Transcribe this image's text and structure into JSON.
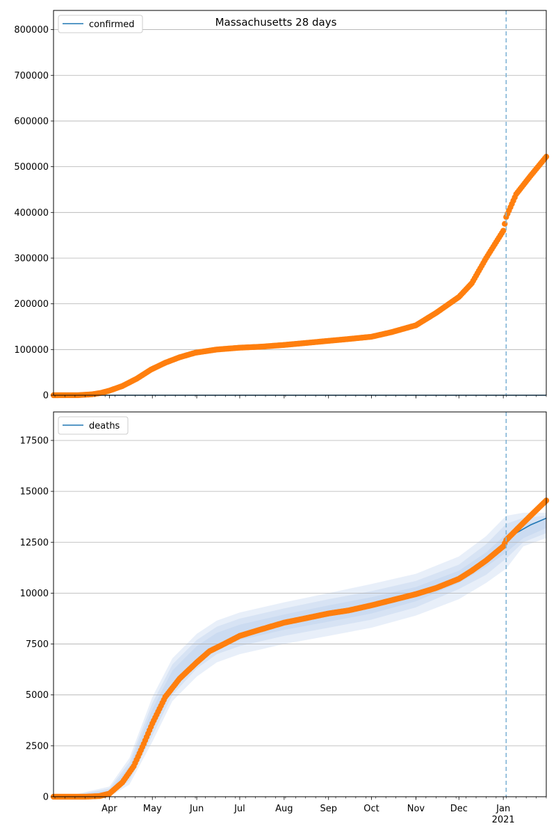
{
  "figure": {
    "title": "Massachusetts 28 days"
  },
  "colors": {
    "model": "#1f77b4",
    "observed": "#ff7f0e",
    "band": "#aec7e8",
    "grid": "#b0b0b0",
    "cutoff": "#7fb3d5"
  },
  "chart_data": [
    {
      "type": "scatter",
      "panel": "confirmed",
      "legend": [
        "confirmed"
      ],
      "legend_position": "top-left",
      "grid": "horizontal",
      "xlim": [
        "2020-02-22",
        "2021-01-31"
      ],
      "ylim": [
        0,
        842000
      ],
      "yticks": [
        0,
        100000,
        200000,
        300000,
        400000,
        500000,
        600000,
        700000,
        800000
      ],
      "xticks": [
        "2020-04-01",
        "2020-05-01",
        "2020-06-01",
        "2020-07-01",
        "2020-08-01",
        "2020-09-01",
        "2020-10-01",
        "2020-11-01",
        "2020-12-01",
        "2021-01-01"
      ],
      "xtick_labels": [
        "Apr",
        "May",
        "Jun",
        "Jul",
        "Aug",
        "Sep",
        "Oct",
        "Nov",
        "Dec",
        "Jan"
      ],
      "xtick_year_label": "2021",
      "forecast_start": "2021-01-03",
      "model_line": [
        [
          "2020-02-22",
          0
        ],
        [
          "2021-01-31",
          0
        ]
      ],
      "observed": [
        [
          "2020-02-22",
          0
        ],
        [
          "2020-03-10",
          100
        ],
        [
          "2020-03-20",
          2000
        ],
        [
          "2020-03-26",
          5000
        ],
        [
          "2020-04-01",
          10000
        ],
        [
          "2020-04-10",
          20000
        ],
        [
          "2020-04-20",
          36000
        ],
        [
          "2020-04-30",
          56000
        ],
        [
          "2020-05-10",
          71000
        ],
        [
          "2020-05-20",
          83000
        ],
        [
          "2020-05-31",
          93000
        ],
        [
          "2020-06-15",
          100000
        ],
        [
          "2020-07-01",
          104000
        ],
        [
          "2020-07-15",
          106000
        ],
        [
          "2020-08-01",
          110000
        ],
        [
          "2020-08-15",
          114000
        ],
        [
          "2020-09-01",
          119000
        ],
        [
          "2020-09-15",
          123000
        ],
        [
          "2020-10-01",
          128000
        ],
        [
          "2020-10-15",
          138000
        ],
        [
          "2020-11-01",
          153000
        ],
        [
          "2020-11-15",
          180000
        ],
        [
          "2020-12-01",
          215000
        ],
        [
          "2020-12-10",
          245000
        ],
        [
          "2020-12-20",
          300000
        ],
        [
          "2021-01-01",
          360000
        ],
        [
          "2021-01-02",
          375000
        ],
        [
          "2021-01-03",
          390000
        ],
        [
          "2021-01-10",
          440000
        ],
        [
          "2021-01-20",
          480000
        ],
        [
          "2021-01-31",
          522000
        ]
      ]
    },
    {
      "type": "line",
      "panel": "deaths",
      "legend": [
        "deaths"
      ],
      "legend_position": "top-left",
      "grid": "horizontal",
      "xlim": [
        "2020-02-22",
        "2021-01-31"
      ],
      "ylim": [
        0,
        18900
      ],
      "yticks": [
        0,
        2500,
        5000,
        7500,
        10000,
        12500,
        15000,
        17500
      ],
      "forecast_start": "2021-01-03",
      "model_line": [
        [
          "2021-01-03",
          12600
        ],
        [
          "2021-01-10",
          12950
        ],
        [
          "2021-01-20",
          13350
        ],
        [
          "2021-01-31",
          13680
        ]
      ],
      "bands": [
        {
          "x": [
            "2020-03-01",
            "2020-04-01",
            "2020-04-15",
            "2020-05-01",
            "2020-05-15",
            "2020-06-01",
            "2020-06-15",
            "2020-07-01",
            "2020-08-01",
            "2020-09-01",
            "2020-10-01",
            "2020-11-01",
            "2020-12-01",
            "2020-12-20",
            "2021-01-03",
            "2021-01-15",
            "2021-01-31"
          ],
          "lower": [
            0,
            0,
            600,
            2700,
            4700,
            5900,
            6600,
            7000,
            7500,
            7900,
            8300,
            8900,
            9700,
            10500,
            11200,
            12300,
            12700
          ],
          "upper": [
            0,
            500,
            1900,
            4900,
            6800,
            8000,
            8650,
            9050,
            9550,
            10000,
            10450,
            10950,
            11800,
            12800,
            13800,
            13950,
            13950
          ]
        },
        {
          "x": [
            "2020-03-01",
            "2020-04-01",
            "2020-04-15",
            "2020-05-01",
            "2020-05-15",
            "2020-06-01",
            "2020-06-15",
            "2020-07-01",
            "2020-08-01",
            "2020-09-01",
            "2020-10-01",
            "2020-11-01",
            "2020-12-01",
            "2020-12-20",
            "2021-01-03",
            "2021-01-15",
            "2021-01-31"
          ],
          "lower": [
            0,
            0,
            800,
            3000,
            5000,
            6300,
            7000,
            7400,
            7900,
            8300,
            8700,
            9300,
            10200,
            10900,
            11700,
            12500,
            12950
          ],
          "upper": [
            0,
            400,
            1700,
            4600,
            6500,
            7700,
            8350,
            8750,
            9250,
            9700,
            10100,
            10600,
            11400,
            12400,
            13400,
            13700,
            13800
          ]
        },
        {
          "x": [
            "2020-03-01",
            "2020-04-01",
            "2020-04-15",
            "2020-05-01",
            "2020-05-15",
            "2020-06-01",
            "2020-06-15",
            "2020-07-01",
            "2020-08-01",
            "2020-09-01",
            "2020-10-01",
            "2020-11-01",
            "2020-12-01",
            "2020-12-20",
            "2021-01-03",
            "2021-01-15",
            "2021-01-31"
          ],
          "lower": [
            0,
            0,
            1000,
            3300,
            5300,
            6600,
            7300,
            7700,
            8200,
            8600,
            9000,
            9600,
            10500,
            11300,
            12000,
            12700,
            13200
          ],
          "upper": [
            0,
            300,
            1500,
            4300,
            6200,
            7400,
            8050,
            8450,
            8950,
            9400,
            9800,
            10300,
            11100,
            12000,
            12900,
            13400,
            13600
          ]
        }
      ],
      "observed": [
        [
          "2020-02-22",
          0
        ],
        [
          "2020-03-15",
          0
        ],
        [
          "2020-03-25",
          30
        ],
        [
          "2020-04-01",
          150
        ],
        [
          "2020-04-10",
          700
        ],
        [
          "2020-04-18",
          1500
        ],
        [
          "2020-04-25",
          2600
        ],
        [
          "2020-05-01",
          3600
        ],
        [
          "2020-05-10",
          4900
        ],
        [
          "2020-05-20",
          5800
        ],
        [
          "2020-06-01",
          6600
        ],
        [
          "2020-06-10",
          7150
        ],
        [
          "2020-06-20",
          7500
        ],
        [
          "2020-07-01",
          7900
        ],
        [
          "2020-07-15",
          8200
        ],
        [
          "2020-08-01",
          8550
        ],
        [
          "2020-08-15",
          8750
        ],
        [
          "2020-09-01",
          9000
        ],
        [
          "2020-09-15",
          9150
        ],
        [
          "2020-10-01",
          9400
        ],
        [
          "2020-10-15",
          9650
        ],
        [
          "2020-11-01",
          9950
        ],
        [
          "2020-11-15",
          10250
        ],
        [
          "2020-12-01",
          10700
        ],
        [
          "2020-12-10",
          11100
        ],
        [
          "2020-12-20",
          11600
        ],
        [
          "2021-01-01",
          12300
        ],
        [
          "2021-01-03",
          12600
        ],
        [
          "2021-01-10",
          13100
        ],
        [
          "2021-01-20",
          13800
        ],
        [
          "2021-01-31",
          14550
        ]
      ]
    }
  ]
}
